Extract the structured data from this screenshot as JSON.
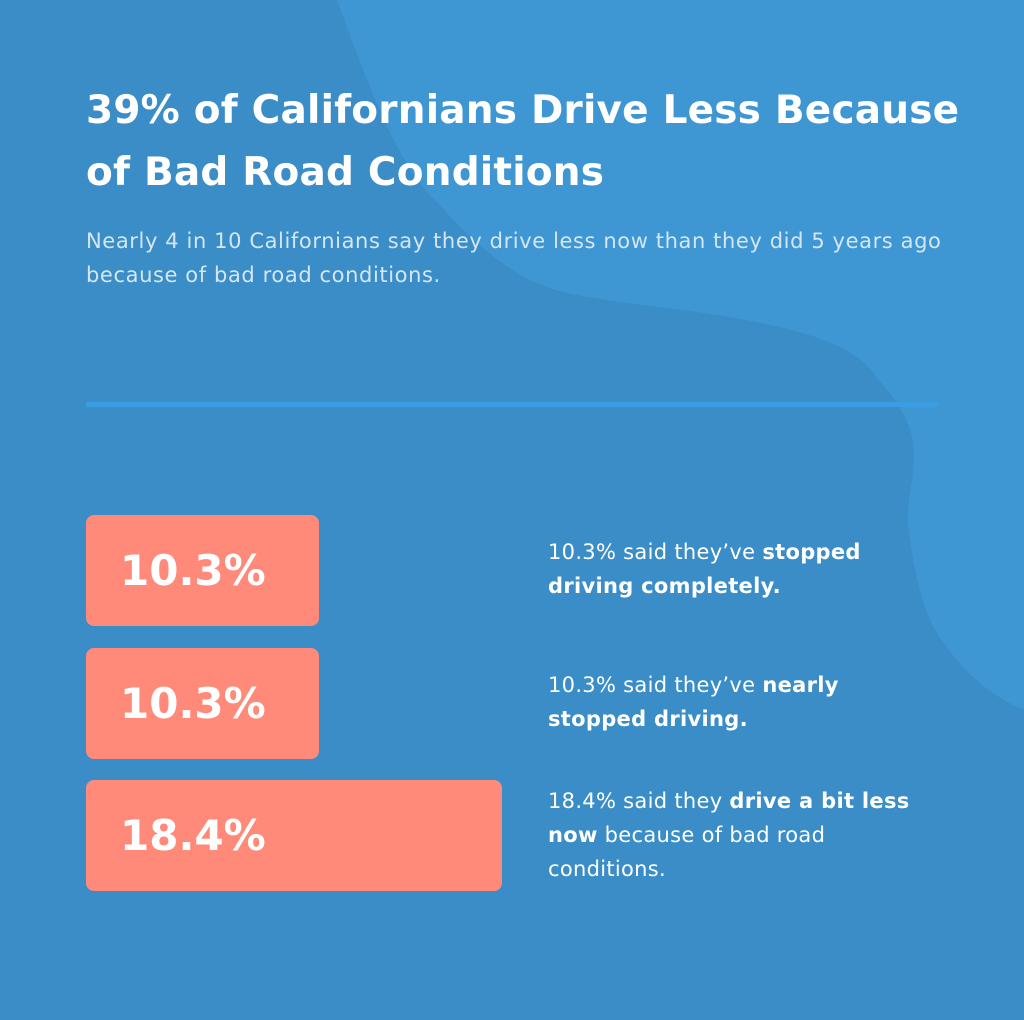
{
  "colors": {
    "background": "#3a8dc7",
    "blob": "#3e97d3",
    "bar": "#ff8a7a",
    "divider": "#3b9de0",
    "text": "#ffffff"
  },
  "header": {
    "title": "39% of Californians Drive Less Because of Bad Road Conditions",
    "subtitle": "Nearly 4 in 10 Californians say they drive less now than they did 5 years ago because of bad road conditions."
  },
  "chart_data": {
    "type": "bar",
    "orientation": "horizontal",
    "title": "39% of Californians Drive Less Because of Bad Road Conditions",
    "categories": [
      "stopped driving completely",
      "nearly stopped driving",
      "drive a bit less now"
    ],
    "values": [
      10.3,
      10.3,
      18.4
    ],
    "value_labels": [
      "10.3%",
      "10.3%",
      "18.4%"
    ],
    "descriptions": [
      {
        "pre": "10.3% said they’ve ",
        "bold": "stopped driving completely.",
        "post": ""
      },
      {
        "pre": "10.3% said they’ve ",
        "bold": "nearly stopped driving.",
        "post": ""
      },
      {
        "pre": "18.4% said they ",
        "bold": "drive a bit less now",
        "post": " because of bad road conditions."
      }
    ],
    "grid": false,
    "legend": "none"
  }
}
